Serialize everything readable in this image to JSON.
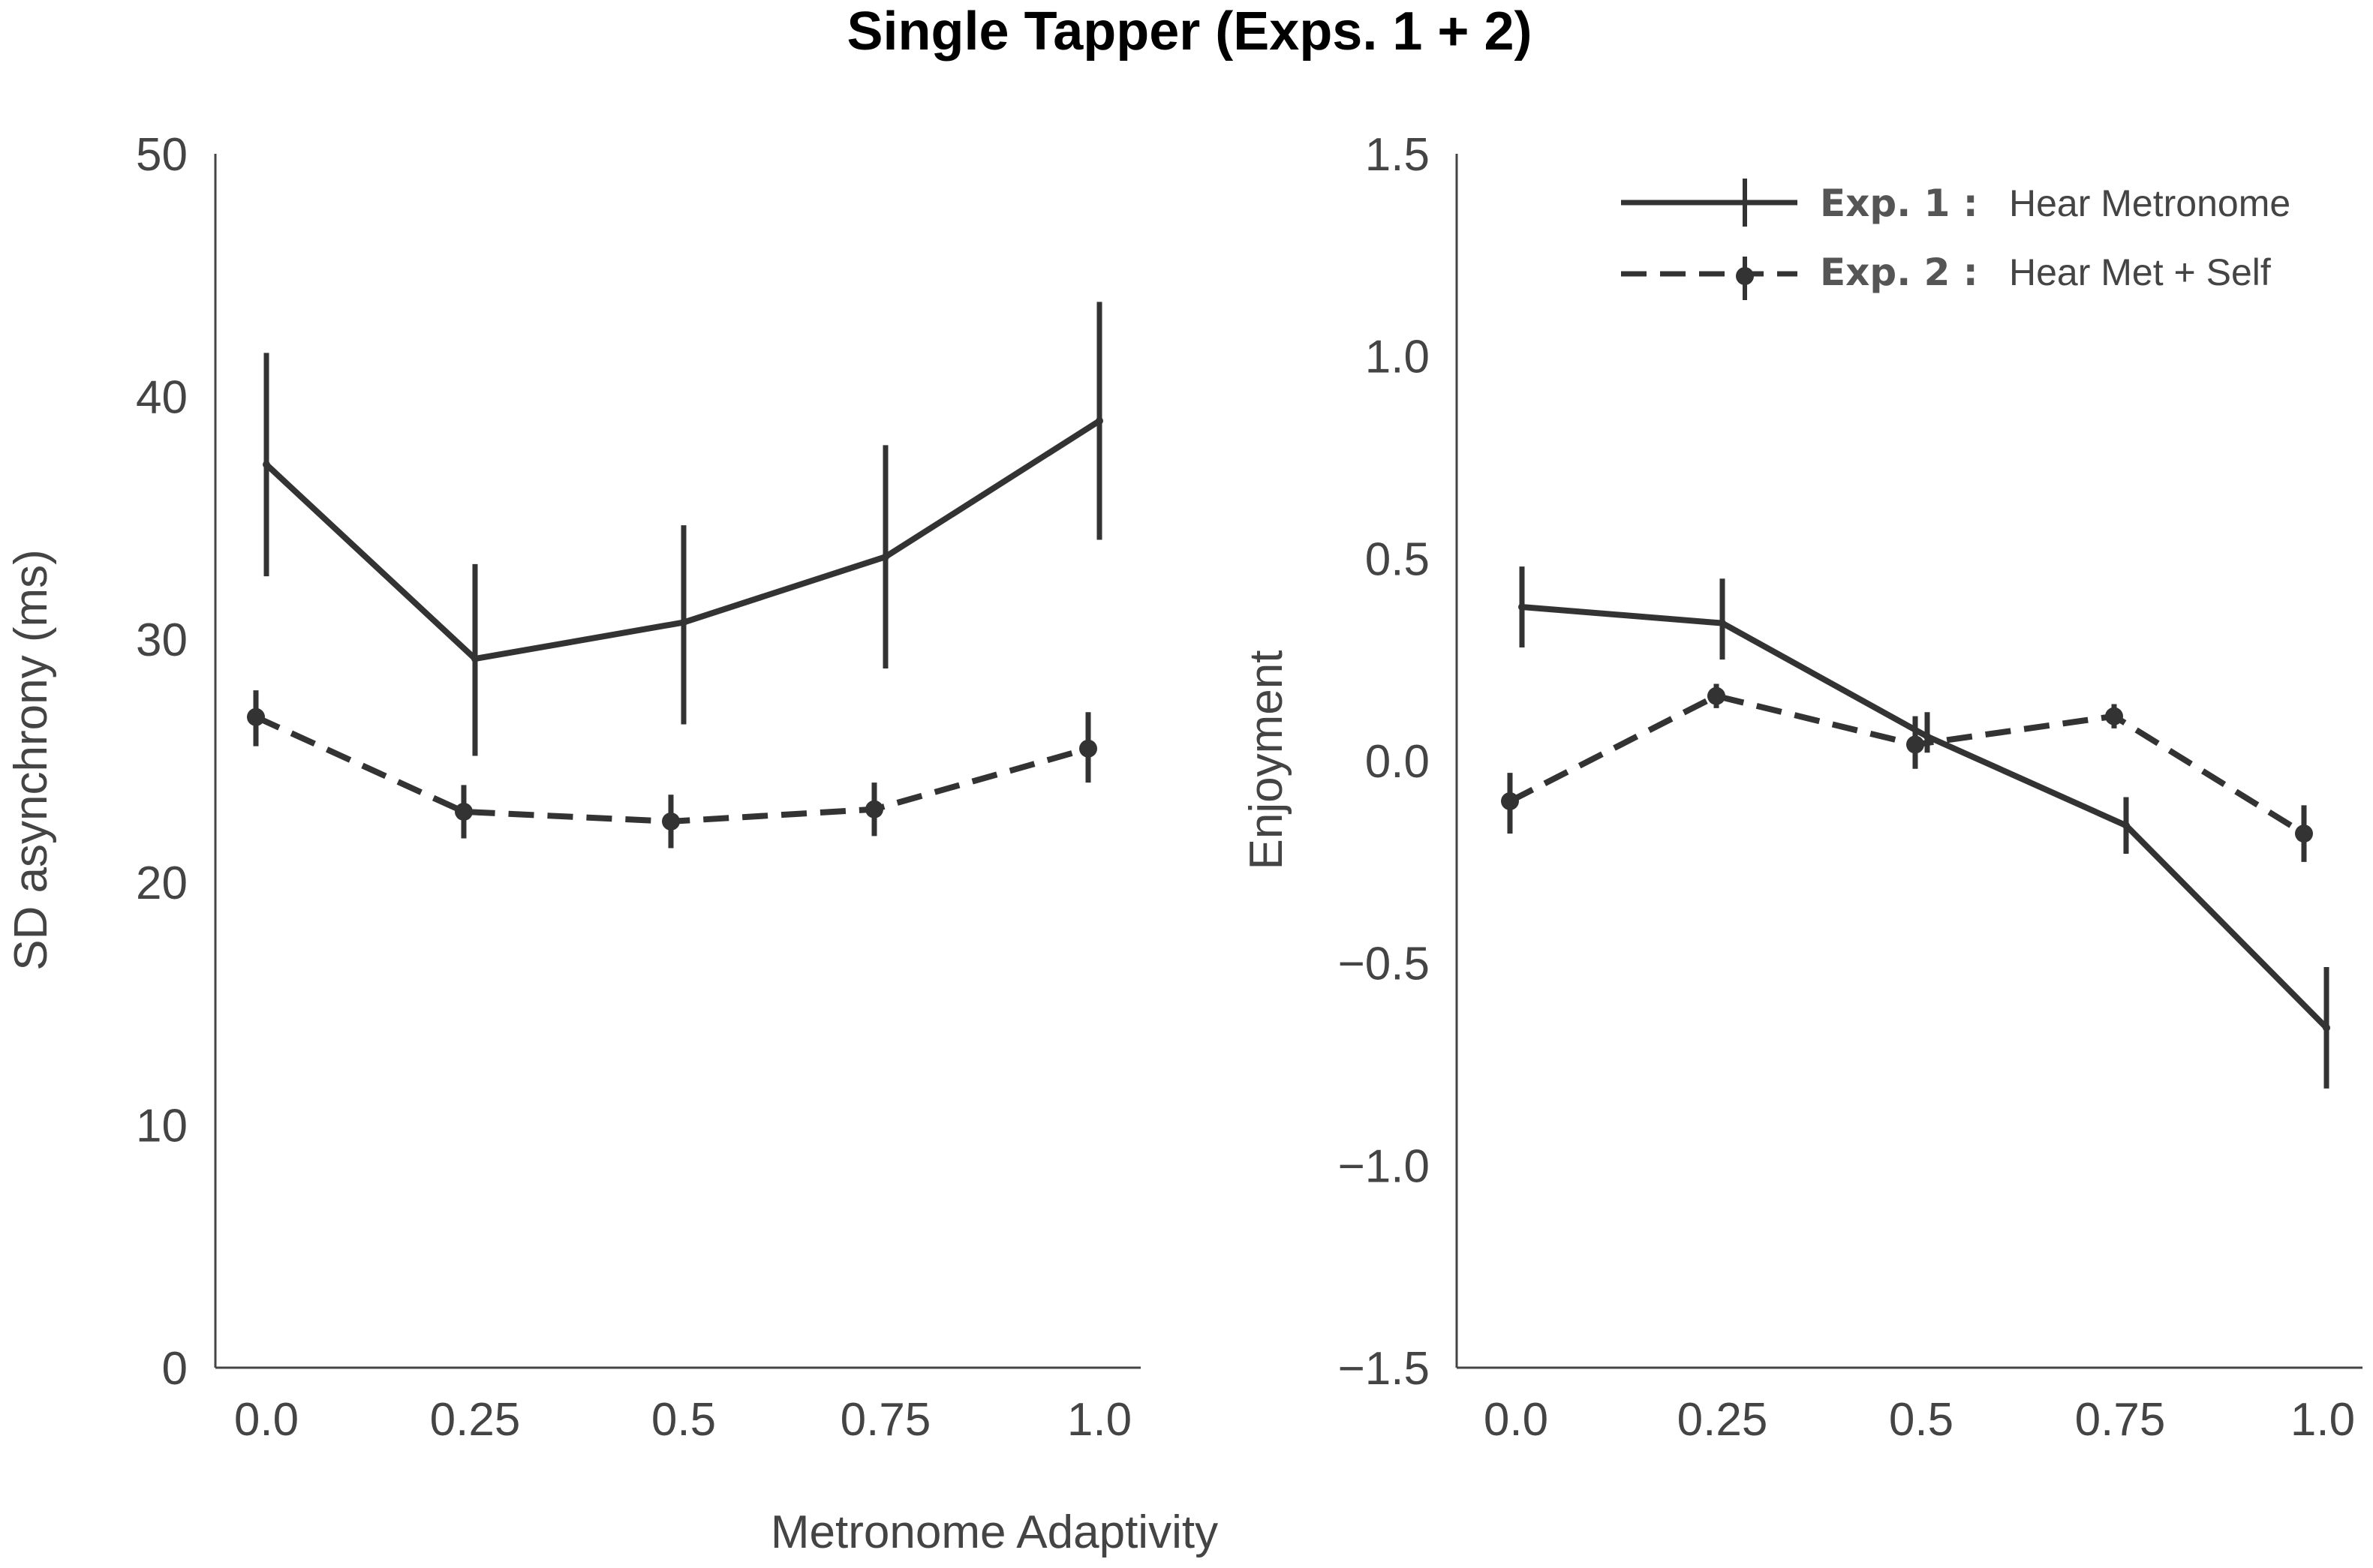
{
  "figure_title": "Single Tapper (Exps. 1 + 2)",
  "shared_xlabel": "Metronome Adaptivity",
  "colors": {
    "line": "#333333",
    "axis": "#444444",
    "text": "#444444"
  },
  "chart_data": [
    {
      "type": "line",
      "ylabel": "SD asynchrony (ms)",
      "xlabel": "",
      "categories": [
        "0.0",
        "0.25",
        "0.5",
        "0.75",
        "1.0"
      ],
      "ylim": [
        0,
        50
      ],
      "yticks": [
        "0",
        "10",
        "20",
        "30",
        "40",
        "50"
      ],
      "grid": false,
      "series": [
        {
          "name": "Exp. 1 : Hear Metronome",
          "style": "solid",
          "values": [
            37.2,
            29.2,
            30.7,
            33.4,
            39.0
          ],
          "err_low": [
            32.6,
            25.2,
            26.5,
            28.8,
            34.1
          ],
          "err_high": [
            41.8,
            33.1,
            34.7,
            38.0,
            43.9
          ]
        },
        {
          "name": "Exp. 2 : Hear Met + Self",
          "style": "dashed",
          "values": [
            26.8,
            22.9,
            22.5,
            23.0,
            25.5
          ],
          "err_low": [
            25.6,
            21.8,
            21.4,
            21.9,
            24.1
          ],
          "err_high": [
            27.9,
            24.0,
            23.6,
            24.1,
            27.0
          ]
        }
      ]
    },
    {
      "type": "line",
      "ylabel": "Enjoyment",
      "xlabel": "",
      "categories": [
        "0.0",
        "0.25",
        "0.5",
        "0.75",
        "1.0"
      ],
      "ylim": [
        -1.5,
        1.5
      ],
      "yticks": [
        "−1.5",
        "−1.0",
        "−0.5",
        "0.0",
        "0.5",
        "1.0",
        "1.5"
      ],
      "grid": false,
      "legend_position": "top-right",
      "series": [
        {
          "name": "Exp. 1 : Hear Metronome",
          "legend_bold": "Exp. 1 :",
          "legend_text": "Hear Metronome",
          "style": "solid",
          "values": [
            0.38,
            0.34,
            0.06,
            -0.16,
            -0.66
          ],
          "err_low": [
            0.28,
            0.25,
            0.02,
            -0.23,
            -0.81
          ],
          "err_high": [
            0.48,
            0.45,
            0.12,
            -0.09,
            -0.51
          ]
        },
        {
          "name": "Exp. 2 : Hear Met + Self",
          "legend_bold": "Exp. 2 :",
          "legend_text": "Hear Met + Self",
          "style": "dashed",
          "values": [
            -0.1,
            0.16,
            0.04,
            0.11,
            -0.18
          ],
          "err_low": [
            -0.18,
            0.13,
            -0.02,
            0.08,
            -0.25
          ],
          "err_high": [
            -0.03,
            0.19,
            0.11,
            0.14,
            -0.11
          ]
        }
      ]
    }
  ]
}
